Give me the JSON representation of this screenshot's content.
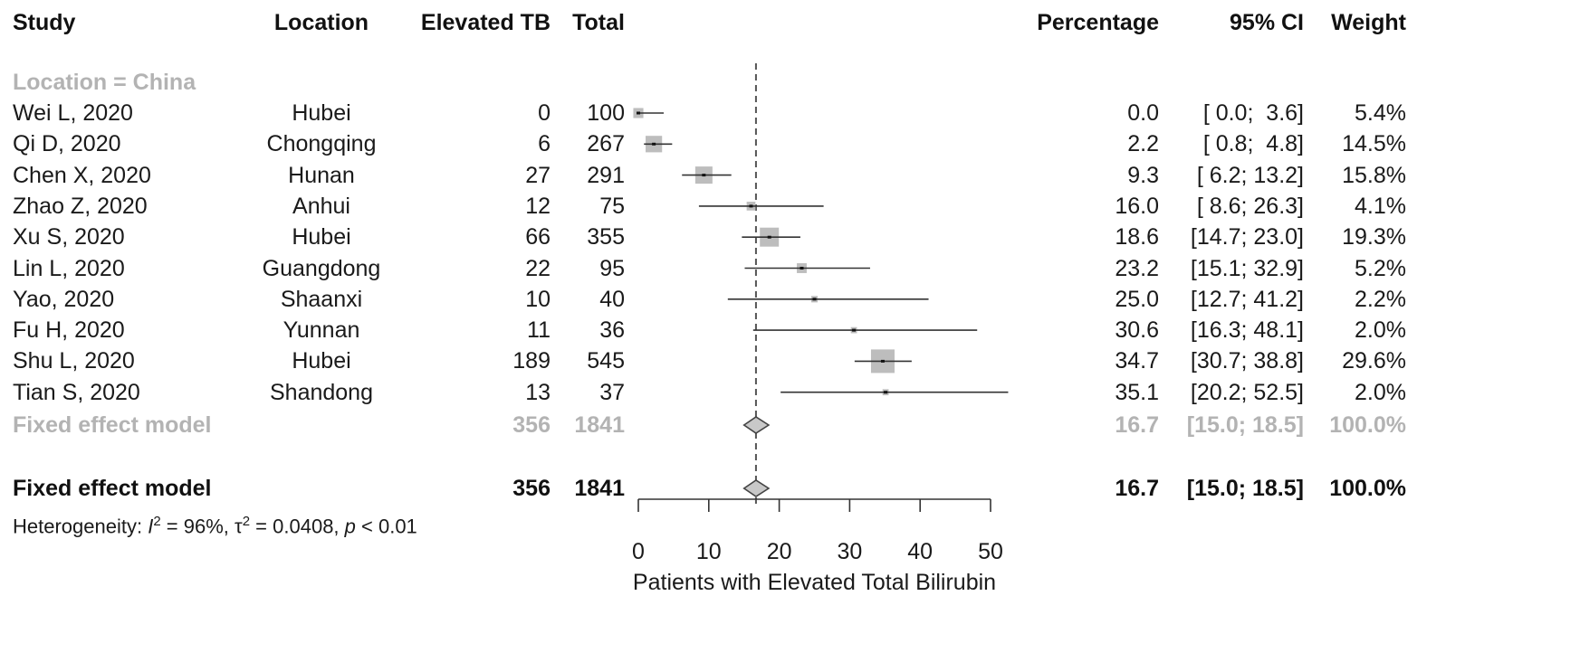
{
  "chart_data": {
    "type": "forest",
    "headers": {
      "study": "Study",
      "location": "Location",
      "events": "Elevated TB",
      "total": "Total",
      "percentage": "Percentage",
      "ci": "95% CI",
      "weight": "Weight"
    },
    "subgroup_label": "Location = China",
    "studies": [
      {
        "study": "Wei L, 2020",
        "location": "Hubei",
        "events": "0",
        "total": "100",
        "est": 0.0,
        "lo": 0.0,
        "hi": 3.6,
        "est_text": "0.0",
        "ci_text": "[ 0.0;  3.6]",
        "weight_text": "5.4%",
        "weight": 5.4
      },
      {
        "study": "Qi D, 2020",
        "location": "Chongqing",
        "events": "6",
        "total": "267",
        "est": 2.2,
        "lo": 0.8,
        "hi": 4.8,
        "est_text": "2.2",
        "ci_text": "[ 0.8;  4.8]",
        "weight_text": "14.5%",
        "weight": 14.5
      },
      {
        "study": "Chen X, 2020",
        "location": "Hunan",
        "events": "27",
        "total": "291",
        "est": 9.3,
        "lo": 6.2,
        "hi": 13.2,
        "est_text": "9.3",
        "ci_text": "[ 6.2; 13.2]",
        "weight_text": "15.8%",
        "weight": 15.8
      },
      {
        "study": "Zhao Z, 2020",
        "location": "Anhui",
        "events": "12",
        "total": "75",
        "est": 16.0,
        "lo": 8.6,
        "hi": 26.3,
        "est_text": "16.0",
        "ci_text": "[ 8.6; 26.3]",
        "weight_text": "4.1%",
        "weight": 4.1
      },
      {
        "study": "Xu S, 2020",
        "location": "Hubei",
        "events": "66",
        "total": "355",
        "est": 18.6,
        "lo": 14.7,
        "hi": 23.0,
        "est_text": "18.6",
        "ci_text": "[14.7; 23.0]",
        "weight_text": "19.3%",
        "weight": 19.3
      },
      {
        "study": "Lin L, 2020",
        "location": "Guangdong",
        "events": "22",
        "total": "95",
        "est": 23.2,
        "lo": 15.1,
        "hi": 32.9,
        "est_text": "23.2",
        "ci_text": "[15.1; 32.9]",
        "weight_text": "5.2%",
        "weight": 5.2
      },
      {
        "study": "Yao, 2020",
        "location": "Shaanxi",
        "events": "10",
        "total": "40",
        "est": 25.0,
        "lo": 12.7,
        "hi": 41.2,
        "est_text": "25.0",
        "ci_text": "[12.7; 41.2]",
        "weight_text": "2.2%",
        "weight": 2.2
      },
      {
        "study": "Fu H, 2020",
        "location": "Yunnan",
        "events": "11",
        "total": "36",
        "est": 30.6,
        "lo": 16.3,
        "hi": 48.1,
        "est_text": "30.6",
        "ci_text": "[16.3; 48.1]",
        "weight_text": "2.0%",
        "weight": 2.0
      },
      {
        "study": "Shu L, 2020",
        "location": "Hubei",
        "events": "189",
        "total": "545",
        "est": 34.7,
        "lo": 30.7,
        "hi": 38.8,
        "est_text": "34.7",
        "ci_text": "[30.7; 38.8]",
        "weight_text": "29.6%",
        "weight": 29.6
      },
      {
        "study": "Tian S, 2020",
        "location": "Shandong",
        "events": "13",
        "total": "37",
        "est": 35.1,
        "lo": 20.2,
        "hi": 52.5,
        "est_text": "35.1",
        "ci_text": "[20.2; 52.5]",
        "weight_text": "2.0%",
        "weight": 2.0
      }
    ],
    "subgroup_summary": {
      "label": "Fixed effect model",
      "events": "356",
      "total": "1841",
      "est": 16.7,
      "lo": 15.0,
      "hi": 18.5,
      "est_text": "16.7",
      "ci_text": "[15.0; 18.5]",
      "weight_text": "100.0%"
    },
    "overall_summary": {
      "label": "Fixed effect model",
      "events": "356",
      "total": "1841",
      "est": 16.7,
      "lo": 15.0,
      "hi": 18.5,
      "est_text": "16.7",
      "ci_text": "[15.0; 18.5]",
      "weight_text": "100.0%"
    },
    "heterogeneity": {
      "prefix": "Heterogeneity: ",
      "i2_symbol": "I",
      "i2_value": " = 96%, ",
      "tau_symbol": "τ",
      "tau_value": " = 0.0408, ",
      "p_symbol": "p",
      "p_value": " < 0.01"
    },
    "x_axis": {
      "label": "Patients with Elevated Total Bilirubin",
      "ticks": [
        0,
        10,
        20,
        30,
        40,
        50
      ],
      "range": [
        0,
        50
      ]
    },
    "reference_line": 16.7,
    "colors": {
      "text": "#1a1a1a",
      "subgroup": "#b3b3b3",
      "box": "#bdbdbd",
      "diamond": "#c8c8c8",
      "line": "#333333"
    }
  }
}
